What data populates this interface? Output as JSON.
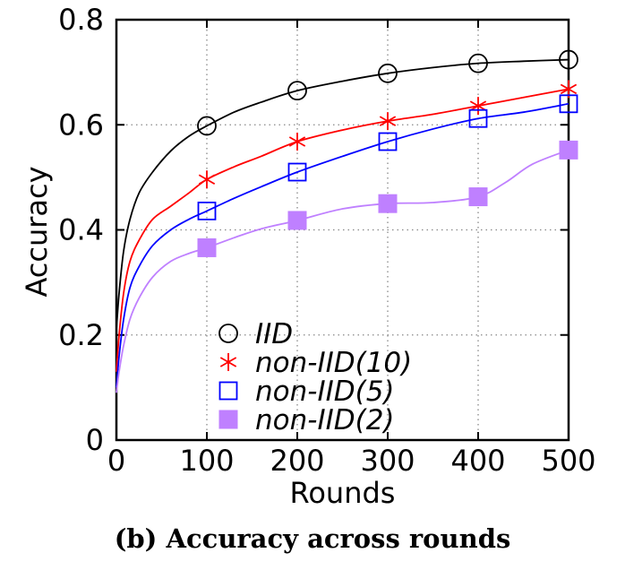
{
  "caption": "(b) Accuracy across rounds",
  "chart_data": {
    "type": "line",
    "title": "",
    "xlabel": "Rounds",
    "ylabel": "Accuracy",
    "xlim": [
      0,
      500
    ],
    "ylim": [
      0,
      0.8
    ],
    "xticks": [
      "0",
      "100",
      "200",
      "300",
      "400",
      "500"
    ],
    "yticks": [
      "0",
      "0.2",
      "0.4",
      "0.6",
      "0.8"
    ],
    "grid": "dotted",
    "legend_position": "bottom-left",
    "series": [
      {
        "name": "IID",
        "color": "#000000",
        "marker": "circle-open",
        "x": [
          100,
          200,
          300,
          400,
          500
        ],
        "values": [
          0.598,
          0.665,
          0.698,
          0.717,
          0.724
        ],
        "curve_x": [
          0,
          3,
          8,
          15,
          25,
          40,
          60,
          80,
          100,
          130,
          160,
          200,
          250,
          300,
          350,
          400,
          450,
          500
        ],
        "curve_y": [
          0.21,
          0.28,
          0.36,
          0.42,
          0.47,
          0.51,
          0.55,
          0.578,
          0.598,
          0.624,
          0.643,
          0.665,
          0.683,
          0.698,
          0.709,
          0.717,
          0.721,
          0.724
        ]
      },
      {
        "name": "non-IID(10)",
        "color": "#ff0000",
        "marker": "asterisk",
        "x": [
          100,
          200,
          300,
          400,
          500
        ],
        "values": [
          0.496,
          0.568,
          0.607,
          0.636,
          0.668
        ],
        "curve_x": [
          0,
          3,
          8,
          15,
          25,
          40,
          60,
          80,
          100,
          130,
          160,
          200,
          250,
          300,
          350,
          400,
          450,
          500
        ],
        "curve_y": [
          0.13,
          0.2,
          0.28,
          0.34,
          0.38,
          0.42,
          0.445,
          0.47,
          0.496,
          0.52,
          0.54,
          0.568,
          0.59,
          0.607,
          0.62,
          0.636,
          0.652,
          0.668
        ]
      },
      {
        "name": "non-IID(5)",
        "color": "#0000ff",
        "marker": "square-open",
        "x": [
          100,
          200,
          300,
          400,
          500
        ],
        "values": [
          0.436,
          0.51,
          0.568,
          0.612,
          0.64
        ],
        "curve_x": [
          0,
          3,
          8,
          15,
          25,
          40,
          60,
          80,
          100,
          130,
          160,
          200,
          250,
          300,
          350,
          400,
          450,
          500
        ],
        "curve_y": [
          0.1,
          0.16,
          0.23,
          0.29,
          0.33,
          0.37,
          0.4,
          0.42,
          0.436,
          0.46,
          0.482,
          0.51,
          0.54,
          0.568,
          0.592,
          0.612,
          0.624,
          0.64
        ]
      },
      {
        "name": "non-IID(2)",
        "color": "#bf80ff",
        "marker": "square-filled",
        "x": [
          100,
          200,
          300,
          400,
          500
        ],
        "values": [
          0.366,
          0.418,
          0.45,
          0.463,
          0.552
        ],
        "curve_x": [
          0,
          3,
          8,
          15,
          25,
          40,
          60,
          80,
          100,
          130,
          160,
          200,
          250,
          300,
          350,
          400,
          430,
          460,
          500
        ],
        "curve_y": [
          0.09,
          0.13,
          0.18,
          0.23,
          0.27,
          0.31,
          0.34,
          0.355,
          0.366,
          0.385,
          0.402,
          0.418,
          0.44,
          0.45,
          0.452,
          0.463,
          0.49,
          0.525,
          0.552
        ]
      }
    ]
  }
}
